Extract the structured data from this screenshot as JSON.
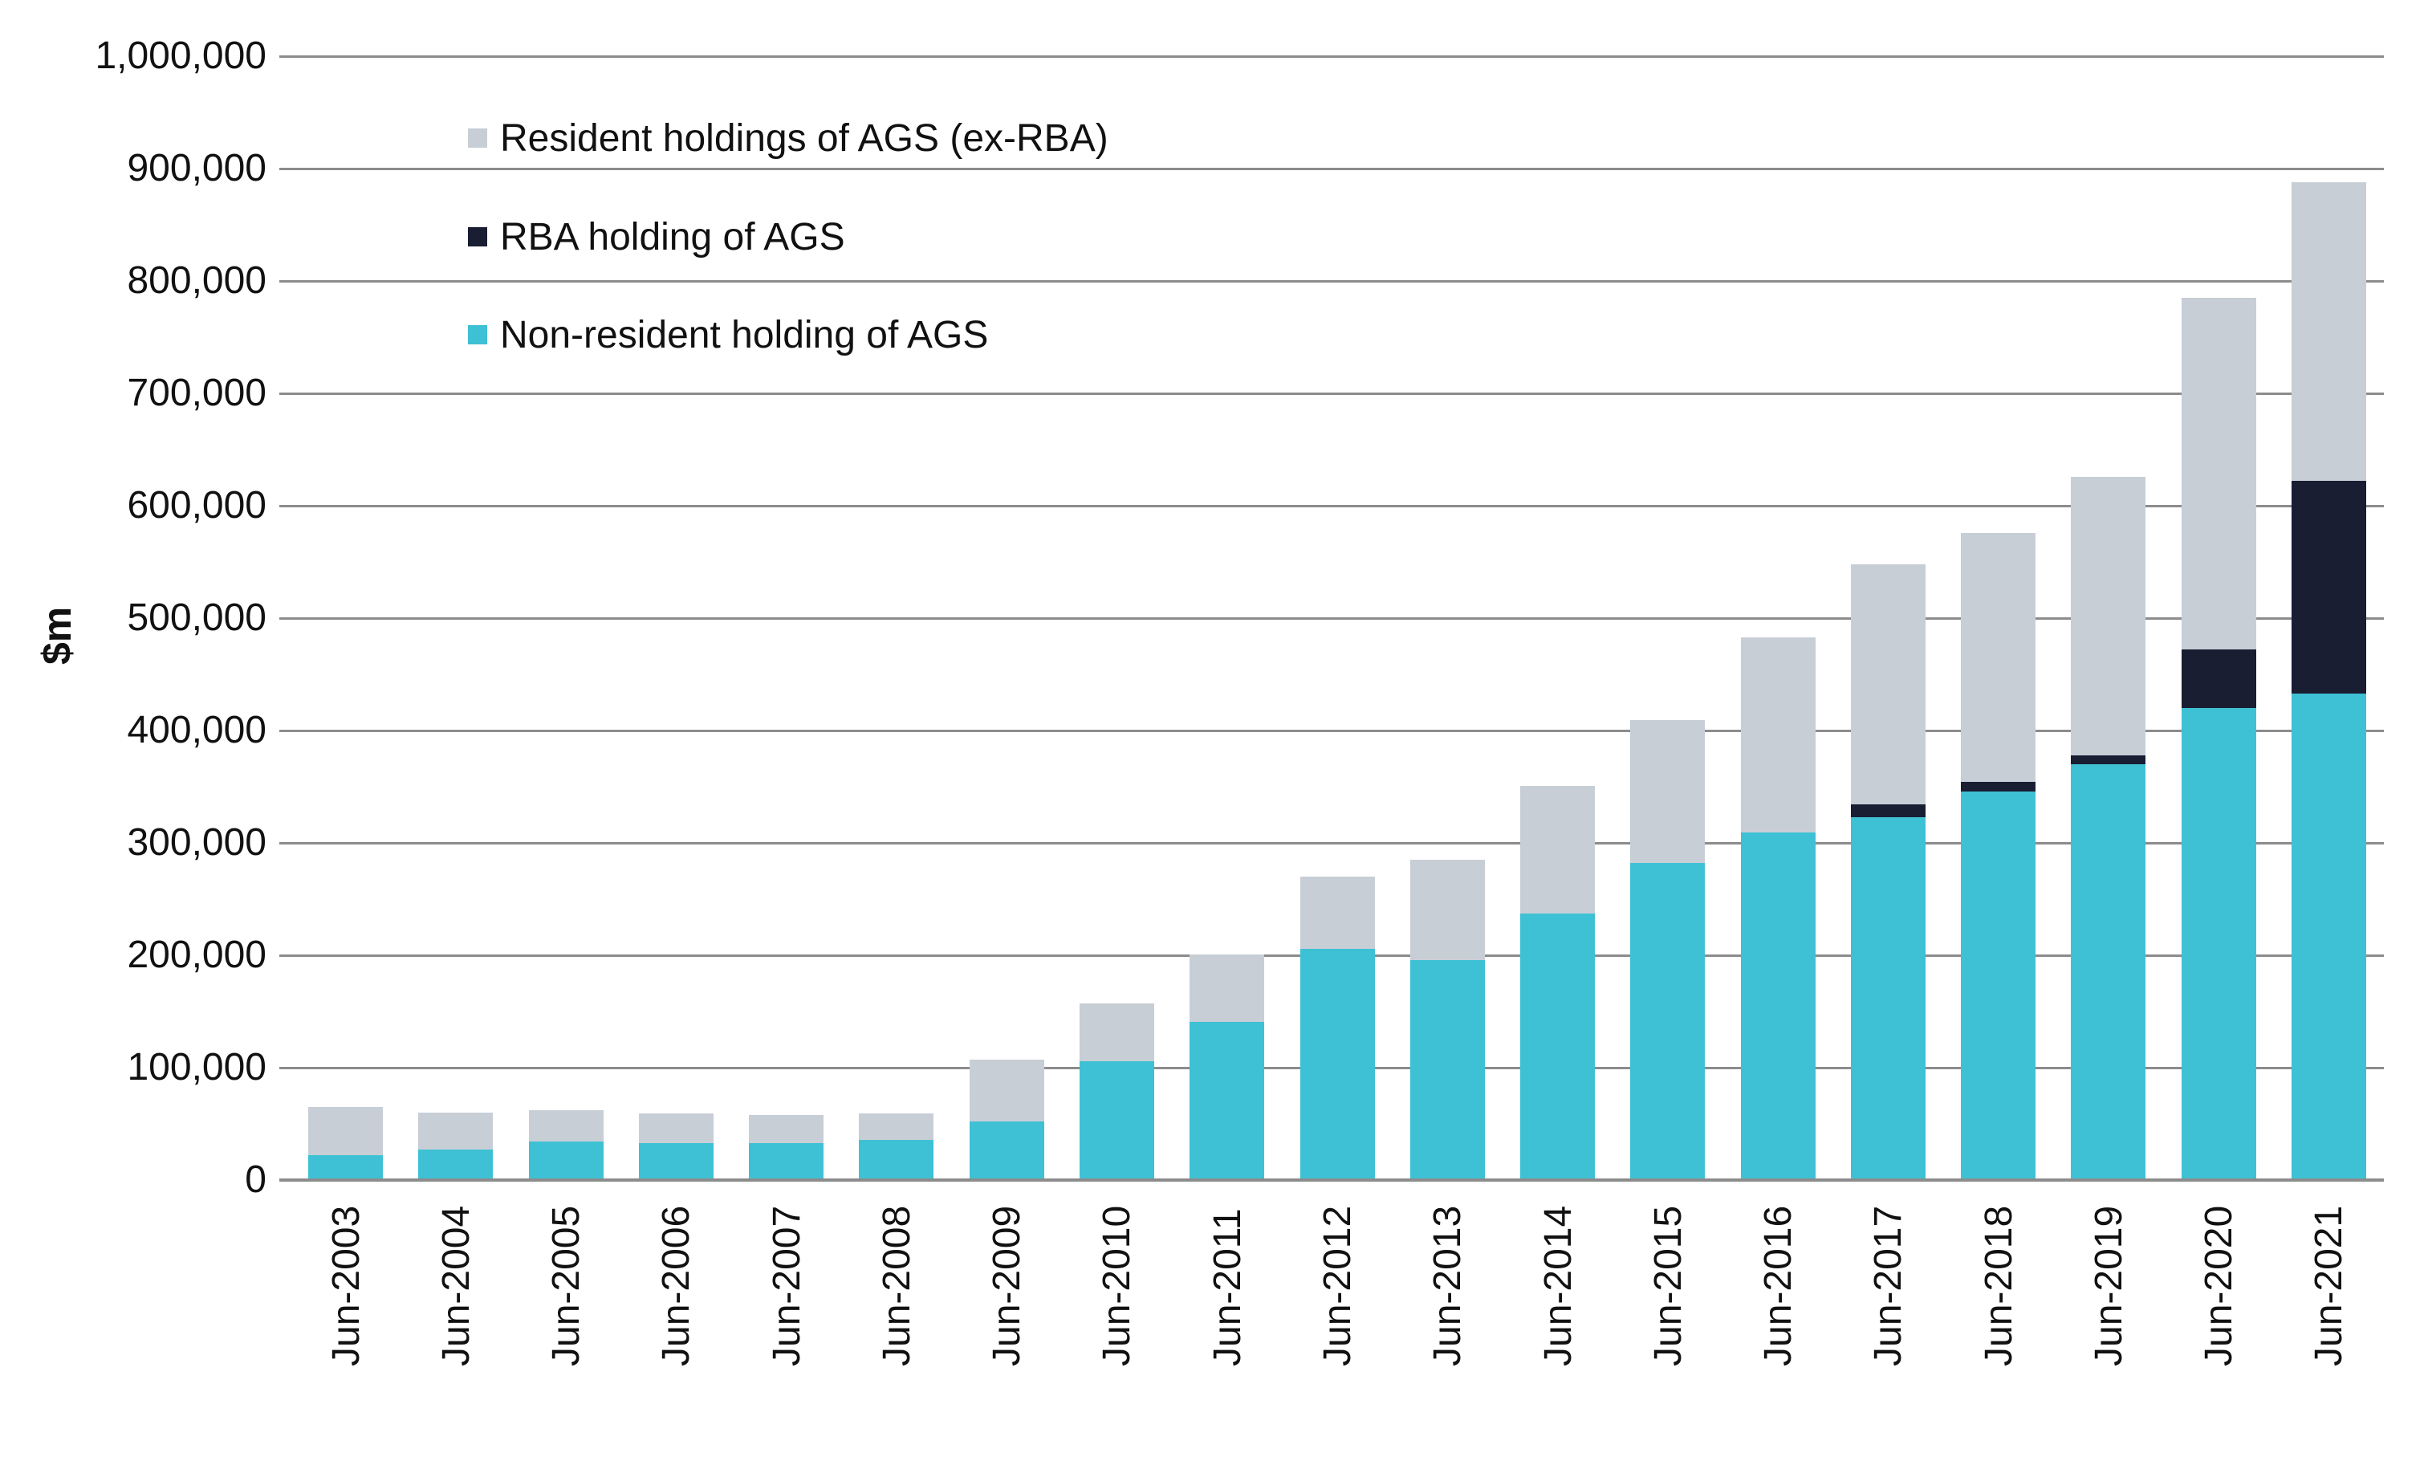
{
  "chart_data": {
    "type": "bar",
    "stacked": true,
    "ylabel": "$m",
    "ylim": [
      0,
      1000000
    ],
    "ytick_step": 100000,
    "ytick_labels": [
      "0",
      "100,000",
      "200,000",
      "300,000",
      "400,000",
      "500,000",
      "600,000",
      "700,000",
      "800,000",
      "900,000",
      "1,000,000"
    ],
    "grid": true,
    "legend_position": "top-left-inside",
    "categories": [
      "Jun-2003",
      "Jun-2004",
      "Jun-2005",
      "Jun-2006",
      "Jun-2007",
      "Jun-2008",
      "Jun-2009",
      "Jun-2010",
      "Jun-2011",
      "Jun-2012",
      "Jun-2013",
      "Jun-2014",
      "Jun-2015",
      "Jun-2016",
      "Jun-2017",
      "Jun-2018",
      "Jun-2019",
      "Jun-2020",
      "Jun-2021"
    ],
    "series": [
      {
        "name": "Non-resident holding of AGS",
        "color": "#3ec1d4",
        "values": [
          22000,
          27000,
          34000,
          33000,
          33000,
          36000,
          52000,
          106000,
          141000,
          206000,
          196000,
          237000,
          282000,
          309000,
          323000,
          346000,
          370000,
          420000,
          433000
        ]
      },
      {
        "name": "RBA holding of AGS",
        "color": "#1a1e33",
        "values": [
          0,
          0,
          0,
          0,
          0,
          0,
          0,
          0,
          0,
          0,
          0,
          0,
          0,
          0,
          11000,
          8000,
          8000,
          52000,
          189000
        ]
      },
      {
        "name": "Resident holdings of AGS (ex-RBA)",
        "color": "#c8ced6",
        "values": [
          43000,
          33000,
          28000,
          26000,
          25000,
          23000,
          55000,
          51000,
          60000,
          64000,
          89000,
          114000,
          127000,
          174000,
          214000,
          222000,
          248000,
          313000,
          266000
        ]
      }
    ],
    "legend_display_order": [
      2,
      1,
      0
    ]
  }
}
